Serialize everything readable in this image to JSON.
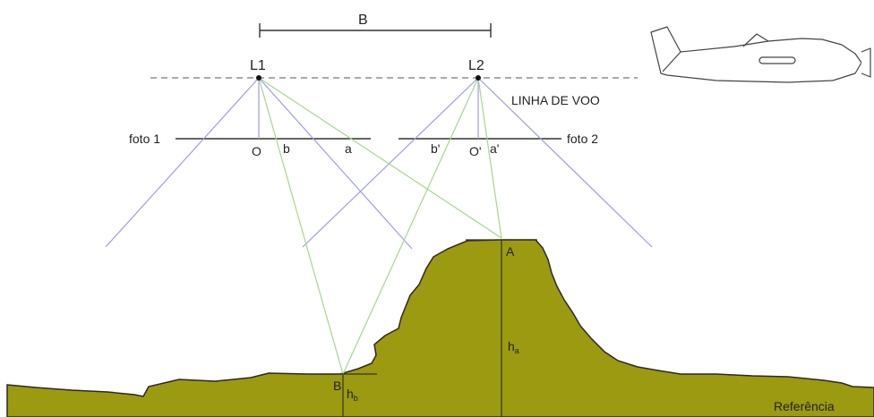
{
  "colors": {
    "terrain": "#9b9a10",
    "terrain_stroke": "#2a2a2a",
    "ray_photo1": "#9d9de6",
    "ray_photo2": "#a6d68e",
    "line": "#333333",
    "text": "#222222"
  },
  "labels": {
    "baseline": "B",
    "station1": "L1",
    "station2": "L2",
    "flight_line": "LINHA DE VOO",
    "photo1": "foto 1",
    "photo2": "foto 2",
    "principal1": "O",
    "principal2": "O'",
    "image_b": "b",
    "image_a": "a",
    "image_b2": "b'",
    "image_a2": "a'",
    "point_a": "A",
    "point_b": "B",
    "height_a_main": "h",
    "height_a_sub": "a",
    "height_b_main": "h",
    "height_b_sub": "b",
    "reference": "Referência"
  },
  "icons": {
    "aircraft": "airplane-icon"
  }
}
